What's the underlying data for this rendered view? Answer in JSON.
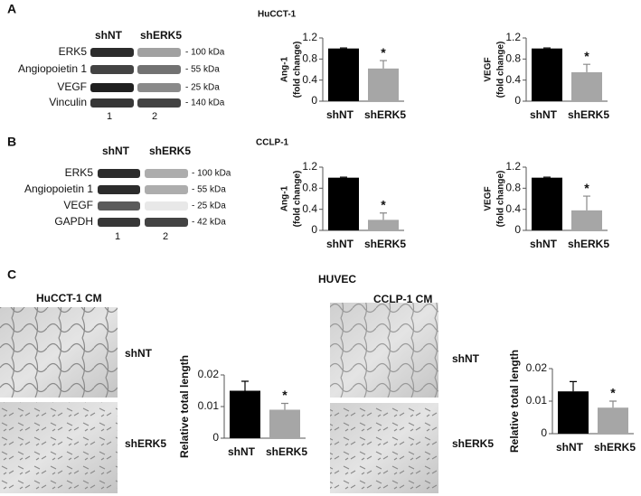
{
  "panels": [
    {
      "label": "A",
      "cell_line": "HuCCT-1",
      "blot": {
        "lanes_header": [
          "shNT",
          "shERK5"
        ],
        "rows": [
          {
            "protein": "ERK5",
            "size": "- 100 kDa"
          },
          {
            "protein": "Angiopoietin 1",
            "size": "- 55 kDa"
          },
          {
            "protein": "VEGF",
            "size": "- 25 kDa"
          },
          {
            "protein": "Vinculin",
            "size": "- 140 kDa"
          }
        ],
        "lane_numbers": [
          "1",
          "2"
        ]
      }
    },
    {
      "label": "B",
      "cell_line": "CCLP-1",
      "blot": {
        "lanes_header": [
          "shNT",
          "shERK5"
        ],
        "rows": [
          {
            "protein": "ERK5",
            "size": "- 100 kDa"
          },
          {
            "protein": "Angiopoietin 1",
            "size": "- 55 kDa"
          },
          {
            "protein": "VEGF",
            "size": "- 25 kDa"
          },
          {
            "protein": "GAPDH",
            "size": "- 42 kDa"
          }
        ],
        "lane_numbers": [
          "1",
          "2"
        ]
      }
    },
    {
      "label": "C",
      "cell_line": "HUVEC",
      "conditions": [
        {
          "title": "HuCCT-1 CM",
          "images": [
            "shNT",
            "shERK5"
          ]
        },
        {
          "title": "CCLP-1 CM",
          "images": [
            "shNT",
            "shERK5"
          ]
        }
      ]
    }
  ],
  "chart_data": [
    {
      "type": "bar",
      "ylabel": [
        "Ang-1",
        "(fold change)"
      ],
      "categories": [
        "shNT",
        "shERK5"
      ],
      "values": [
        1,
        0.62
      ],
      "errors": [
        0.01,
        0.15
      ],
      "significance": [
        null,
        "*"
      ],
      "colors": [
        "#000000",
        "#a6a6a6"
      ],
      "ylim": [
        0,
        1.2
      ],
      "yticks": [
        0,
        0.4,
        0.8,
        1.2
      ]
    },
    {
      "type": "bar",
      "ylabel": [
        "VEGF",
        "(fold change)"
      ],
      "categories": [
        "shNT",
        "shERK5"
      ],
      "values": [
        1,
        0.55
      ],
      "errors": [
        0.01,
        0.15
      ],
      "significance": [
        null,
        "*"
      ],
      "colors": [
        "#000000",
        "#a6a6a6"
      ],
      "ylim": [
        0,
        1.2
      ],
      "yticks": [
        0,
        0.4,
        0.8,
        1.2
      ]
    },
    {
      "type": "bar",
      "ylabel": [
        "Ang-1",
        "(fold change)"
      ],
      "categories": [
        "shNT",
        "shERK5"
      ],
      "values": [
        1,
        0.2
      ],
      "errors": [
        0.01,
        0.13
      ],
      "significance": [
        null,
        "*"
      ],
      "colors": [
        "#000000",
        "#a6a6a6"
      ],
      "ylim": [
        0,
        1.2
      ],
      "yticks": [
        0,
        0.4,
        0.8,
        1.2
      ]
    },
    {
      "type": "bar",
      "ylabel": [
        "VEGF",
        "(fold change)"
      ],
      "categories": [
        "shNT",
        "shERK5"
      ],
      "values": [
        1,
        0.38
      ],
      "errors": [
        0.01,
        0.27
      ],
      "significance": [
        null,
        "*"
      ],
      "colors": [
        "#000000",
        "#a6a6a6"
      ],
      "ylim": [
        0,
        1.2
      ],
      "yticks": [
        0,
        0.4,
        0.8,
        1.2
      ]
    },
    {
      "type": "bar",
      "ylabel": [
        "Relative total length"
      ],
      "categories": [
        "shNT",
        "shERK5"
      ],
      "values": [
        0.015,
        0.009
      ],
      "errors": [
        0.003,
        0.002
      ],
      "significance": [
        null,
        "*"
      ],
      "colors": [
        "#000000",
        "#a6a6a6"
      ],
      "ylim": [
        0,
        0.02
      ],
      "yticks": [
        0,
        0.01,
        0.02
      ]
    },
    {
      "type": "bar",
      "ylabel": [
        "Relative total length"
      ],
      "categories": [
        "shNT",
        "shERK5"
      ],
      "values": [
        0.013,
        0.008
      ],
      "errors": [
        0.003,
        0.002
      ],
      "significance": [
        null,
        "*"
      ],
      "colors": [
        "#000000",
        "#a6a6a6"
      ],
      "ylim": [
        0,
        0.02
      ],
      "yticks": [
        0,
        0.01,
        0.02
      ]
    }
  ]
}
